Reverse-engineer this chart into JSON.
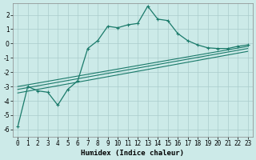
{
  "title": "",
  "xlabel": "Humidex (Indice chaleur)",
  "ylabel": "",
  "bg_color": "#cceae8",
  "grid_color": "#aacccc",
  "line_color": "#1a7a6a",
  "xlim": [
    -0.5,
    23.5
  ],
  "ylim": [
    -6.5,
    2.8
  ],
  "yticks": [
    -6,
    -5,
    -4,
    -3,
    -2,
    -1,
    0,
    1,
    2
  ],
  "xticks": [
    0,
    1,
    2,
    3,
    4,
    5,
    6,
    7,
    8,
    9,
    10,
    11,
    12,
    13,
    14,
    15,
    16,
    17,
    18,
    19,
    20,
    21,
    22,
    23
  ],
  "main_line_x": [
    0,
    1,
    2,
    3,
    4,
    5,
    6,
    7,
    8,
    9,
    10,
    11,
    12,
    13,
    14,
    15,
    16,
    17,
    18,
    19,
    20,
    21,
    22,
    23
  ],
  "main_line_y": [
    -5.8,
    -3.0,
    -3.3,
    -3.4,
    -4.3,
    -3.2,
    -2.6,
    -0.35,
    0.2,
    1.2,
    1.1,
    1.3,
    1.4,
    2.6,
    1.7,
    1.6,
    0.7,
    0.2,
    -0.1,
    -0.3,
    -0.35,
    -0.35,
    -0.2,
    -0.1
  ],
  "trend_lines": [
    {
      "x": [
        0,
        23
      ],
      "y": [
        -3.0,
        -0.2
      ]
    },
    {
      "x": [
        0,
        23
      ],
      "y": [
        -3.2,
        -0.35
      ]
    },
    {
      "x": [
        0,
        23
      ],
      "y": [
        -3.45,
        -0.55
      ]
    }
  ],
  "xlabel_fontsize": 6.5,
  "tick_labelsize": 5.5
}
